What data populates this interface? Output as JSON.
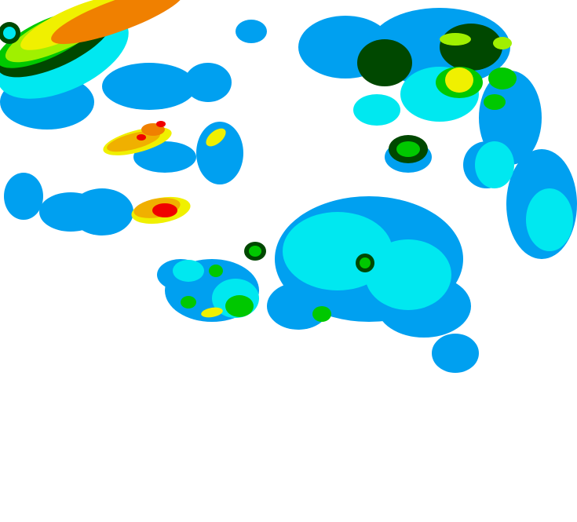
{
  "map": {
    "type": "precipitation-radar",
    "background": "#ffffff",
    "palette": {
      "light_blue": "#00a0f0",
      "cyan": "#00e8f0",
      "dark_green": "#004800",
      "green": "#00c800",
      "lime": "#a0f000",
      "yellow": "#f0f000",
      "orange": "#f08000",
      "light_orange": "#f0b000",
      "red": "#f00000"
    }
  }
}
